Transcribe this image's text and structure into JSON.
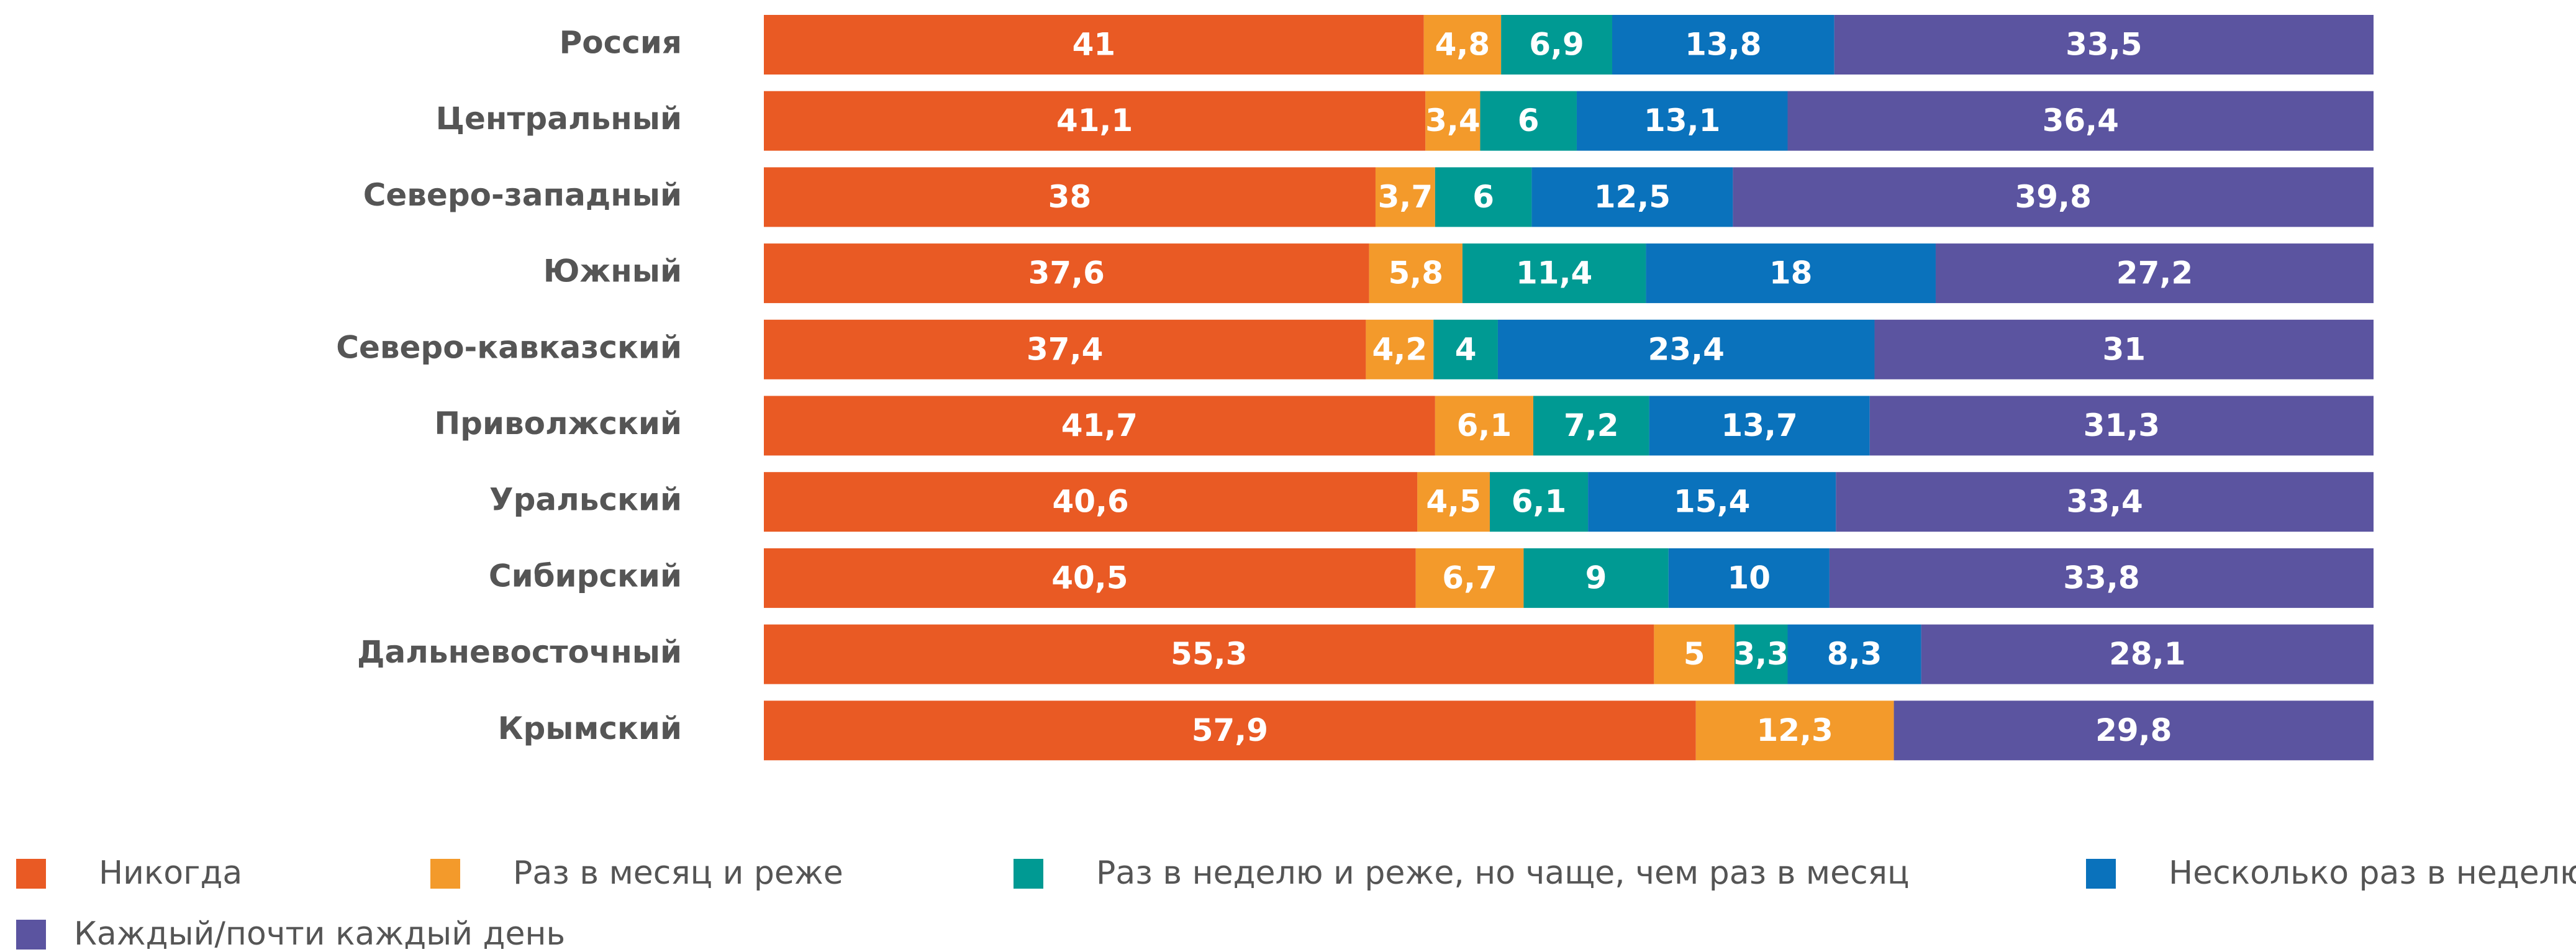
{
  "chart_data": {
    "type": "stacked_bar",
    "orientation": "horizontal",
    "categories": [
      "Россия",
      "Центральный",
      "Северо-западный",
      "Южный",
      "Северо-кавказский",
      "Приволжский",
      "Уральский",
      "Сибирский",
      "Дальневосточный",
      "Крымский"
    ],
    "xlim": [
      0,
      100
    ],
    "series": [
      {
        "name": "Никогда",
        "color": "#e95a24",
        "values": [
          41,
          41.1,
          38,
          37.6,
          37.4,
          41.7,
          40.6,
          40.5,
          55.3,
          57.9
        ],
        "value_labels": [
          "41",
          "41,1",
          "38",
          "37,6",
          "37,4",
          "41,7",
          "40,6",
          "40,5",
          "55,3",
          "57,9"
        ]
      },
      {
        "name": "Раз в месяц и реже",
        "color": "#f39a2b",
        "values": [
          4.8,
          3.4,
          3.7,
          5.8,
          4.2,
          6.1,
          4.5,
          6.7,
          5,
          12.3
        ],
        "value_labels": [
          "4,8",
          "3,4",
          "3,7",
          "5,8",
          "4,2",
          "6,1",
          "4,5",
          "6,7",
          "5",
          "12,3"
        ]
      },
      {
        "name": "Раз в неделю и реже, но чаще, чем раз в месяц",
        "color": "#009a93",
        "values": [
          6.9,
          6,
          6,
          11.4,
          4,
          7.2,
          6.1,
          9,
          3.3,
          null
        ],
        "value_labels": [
          "6,9",
          "6",
          "6",
          "11,4",
          "4",
          "7,2",
          "6,1",
          "9",
          "3,3",
          null
        ]
      },
      {
        "name": "Несколько раз в неделю",
        "color": "#0a72bc",
        "values": [
          13.8,
          13.1,
          12.5,
          18,
          23.4,
          13.7,
          15.4,
          10,
          8.3,
          null
        ],
        "value_labels": [
          "13,8",
          "13,1",
          "12,5",
          "18",
          "23,4",
          "13,7",
          "15,4",
          "10",
          "8,3",
          null
        ]
      },
      {
        "name": "Каждый/почти каждый день",
        "color": "#5b54a0",
        "values": [
          33.5,
          36.4,
          39.8,
          27.2,
          31,
          31.3,
          33.4,
          33.8,
          28.1,
          29.8
        ],
        "value_labels": [
          "33,5",
          "36,4",
          "39,8",
          "27,2",
          "31",
          "31,3",
          "33,4",
          "33,8",
          "28,1",
          "29,8"
        ]
      }
    ]
  }
}
